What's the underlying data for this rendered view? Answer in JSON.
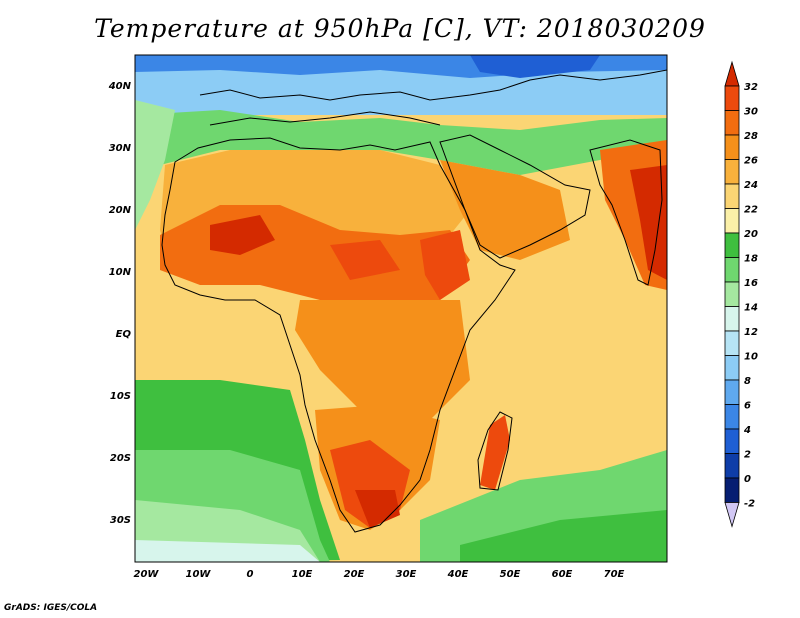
{
  "title": "Temperature at 950hPa [C], VT: 2018030209",
  "credit": "GrADS: IGES/COLA",
  "lat_labels": [
    "40N",
    "30N",
    "20N",
    "10N",
    "EQ",
    "10S",
    "20S",
    "30S"
  ],
  "lon_labels": [
    "20W",
    "10W",
    "0",
    "10E",
    "20E",
    "30E",
    "40E",
    "50E",
    "60E",
    "70E"
  ],
  "colorbar": {
    "levels": [
      "32",
      "30",
      "28",
      "26",
      "24",
      "22",
      "20",
      "18",
      "16",
      "14",
      "12",
      "10",
      "8",
      "6",
      "4",
      "2",
      "0",
      "-2"
    ],
    "colors": [
      "#d42a00",
      "#ed4a0d",
      "#f26d10",
      "#f5901a",
      "#f8b13c",
      "#fbd574",
      "#fbf0a8",
      "#3fbf3f",
      "#6fd76f",
      "#a5e8a0",
      "#d7f5ec",
      "#b6e4f5",
      "#8cccf5",
      "#5fa9ef",
      "#3b86e6",
      "#1f5fd4",
      "#0e3da8",
      "#061e72",
      "#d2c8f5"
    ]
  },
  "map": {
    "region": "Africa",
    "lon_range": [
      -22,
      80
    ],
    "lat_range": [
      -37,
      45
    ],
    "ocean_color": "#fbf0a8"
  }
}
